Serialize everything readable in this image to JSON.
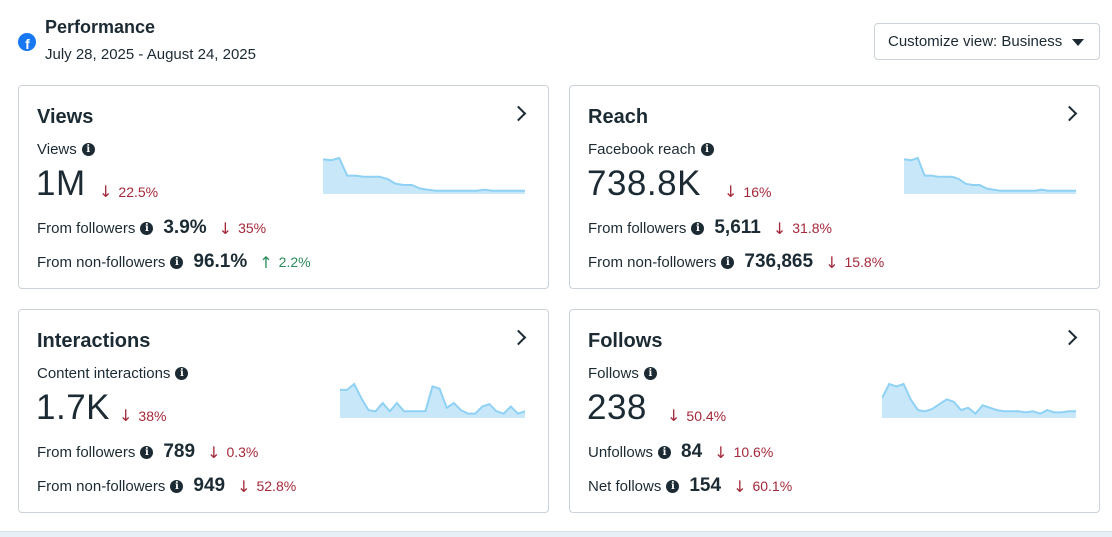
{
  "header": {
    "title": "Performance",
    "date_range": "July 28, 2025 - August 24, 2025",
    "customize_label": "Customize view: Business"
  },
  "colors": {
    "facebook_blue": "#1877f2",
    "decrease": "#a5283a",
    "increase": "#2a8b5a",
    "sparkline_fill": "#c8e8fa",
    "sparkline_stroke": "#8fd1f5"
  },
  "cards": {
    "views": {
      "title": "Views",
      "metric_label": "Views",
      "value": "1M",
      "change": "22.5%",
      "change_dir": "down",
      "rows": [
        {
          "label": "From followers",
          "value": "3.9%",
          "change": "35%",
          "dir": "down"
        },
        {
          "label": "From non-followers",
          "value": "96.1%",
          "change": "2.2%",
          "dir": "up"
        }
      ],
      "spark": [
        28,
        27,
        29,
        14,
        14,
        13,
        13,
        13,
        11,
        7,
        6,
        6,
        3,
        2,
        1,
        1,
        1,
        1,
        1,
        1,
        2,
        1,
        1,
        1,
        1,
        1
      ]
    },
    "reach": {
      "title": "Reach",
      "metric_label": "Facebook reach",
      "value": "738.8K",
      "change": "16%",
      "change_dir": "down",
      "rows": [
        {
          "label": "From followers",
          "value": "5,611",
          "change": "31.8%",
          "dir": "down"
        },
        {
          "label": "From non-followers",
          "value": "736,865",
          "change": "15.8%",
          "dir": "down"
        }
      ],
      "spark": [
        28,
        27,
        29,
        14,
        14,
        13,
        13,
        13,
        11,
        7,
        6,
        6,
        3,
        2,
        1,
        1,
        1,
        1,
        1,
        1,
        2,
        1,
        1,
        1,
        1,
        1
      ]
    },
    "interactions": {
      "title": "Interactions",
      "metric_label": "Content interactions",
      "value": "1.7K",
      "change": "38%",
      "change_dir": "down",
      "rows": [
        {
          "label": "From followers",
          "value": "789",
          "change": "0.3%",
          "dir": "down"
        },
        {
          "label": "From non-followers",
          "value": "949",
          "change": "52.8%",
          "dir": "down"
        }
      ],
      "spark": [
        22,
        22,
        27,
        15,
        5,
        4,
        11,
        4,
        11,
        4,
        4,
        4,
        4,
        25,
        23,
        7,
        11,
        5,
        2,
        2,
        8,
        10,
        4,
        2,
        8,
        2,
        4
      ]
    },
    "follows": {
      "title": "Follows",
      "metric_label": "Follows",
      "value": "238",
      "change": "50.4%",
      "change_dir": "down",
      "rows": [
        {
          "label": "Unfollows",
          "value": "84",
          "change": "10.6%",
          "dir": "down"
        },
        {
          "label": "Net follows",
          "value": "154",
          "change": "60.1%",
          "dir": "down"
        }
      ],
      "spark": [
        15,
        27,
        25,
        27,
        14,
        5,
        4,
        6,
        10,
        14,
        12,
        5,
        7,
        2,
        9,
        7,
        5,
        4,
        4,
        4,
        3,
        4,
        2,
        5,
        3,
        3,
        4,
        4
      ]
    }
  }
}
